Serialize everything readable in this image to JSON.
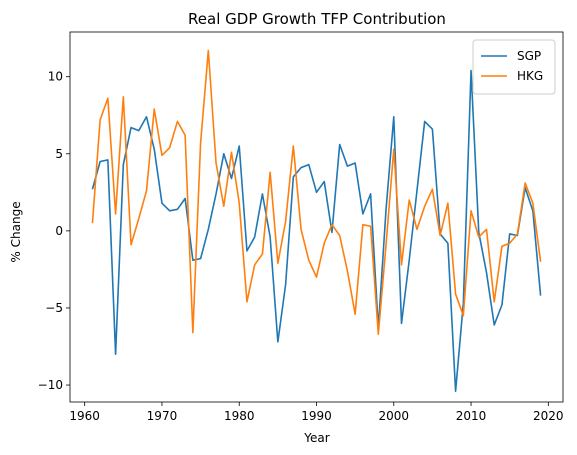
{
  "chart_data": {
    "type": "line",
    "title": "Real GDP Growth TFP Contribution",
    "xlabel": "Year",
    "ylabel": "% Change",
    "xlim": [
      1958.1,
      2021.9
    ],
    "ylim": [
      -11.1,
      12.9
    ],
    "xticks": [
      1960,
      1970,
      1980,
      1990,
      2000,
      2010,
      2020
    ],
    "yticks": [
      -10,
      -5,
      0,
      5,
      10
    ],
    "ytick_labels": [
      "−10",
      "−5",
      "0",
      "5",
      "10"
    ],
    "grid": false,
    "legend_position": "top-right",
    "x": [
      1961,
      1962,
      1963,
      1964,
      1965,
      1966,
      1967,
      1968,
      1969,
      1970,
      1971,
      1972,
      1973,
      1974,
      1975,
      1976,
      1977,
      1978,
      1979,
      1980,
      1981,
      1982,
      1983,
      1984,
      1985,
      1986,
      1987,
      1988,
      1989,
      1990,
      1991,
      1992,
      1993,
      1994,
      1995,
      1996,
      1997,
      1998,
      1999,
      2000,
      2001,
      2002,
      2003,
      2004,
      2005,
      2006,
      2007,
      2008,
      2009,
      2010,
      2011,
      2012,
      2013,
      2014,
      2015,
      2016,
      2017,
      2018,
      2019
    ],
    "series": [
      {
        "name": "SGP",
        "color": "#1f77b4",
        "values": [
          2.7,
          4.5,
          4.6,
          -8.0,
          4.3,
          6.7,
          6.5,
          7.4,
          5.3,
          1.8,
          1.3,
          1.4,
          2.1,
          -1.9,
          -1.8,
          0.1,
          2.4,
          5.0,
          3.4,
          5.5,
          -1.3,
          -0.4,
          2.4,
          -0.4,
          -7.2,
          -3.5,
          3.5,
          4.1,
          4.3,
          2.5,
          3.2,
          -0.1,
          5.6,
          4.2,
          4.4,
          1.1,
          2.4,
          -6.3,
          1.4,
          7.4,
          -6.0,
          -1.9,
          2.6,
          7.1,
          6.6,
          -0.2,
          -0.8,
          -10.4,
          -4.7,
          10.4,
          -0.1,
          -2.7,
          -6.1,
          -4.8,
          -0.2,
          -0.3,
          2.8,
          1.3,
          -4.2
        ]
      },
      {
        "name": "HKG",
        "color": "#ff7f0e",
        "values": [
          0.5,
          7.2,
          8.6,
          1.1,
          8.7,
          -0.9,
          0.8,
          2.6,
          7.9,
          4.9,
          5.4,
          7.1,
          6.2,
          -6.6,
          5.7,
          11.7,
          4.4,
          1.6,
          5.1,
          1.8,
          -4.6,
          -2.2,
          -1.5,
          3.8,
          -2.1,
          0.6,
          5.5,
          0.1,
          -1.9,
          -3.0,
          -0.8,
          0.4,
          -0.3,
          -2.6,
          -5.4,
          0.4,
          0.3,
          -6.7,
          -0.9,
          5.3,
          -2.2,
          2.0,
          0.1,
          1.6,
          2.7,
          -0.3,
          1.8,
          -4.1,
          -5.5,
          1.3,
          -0.4,
          0.1,
          -4.6,
          -1.0,
          -0.8,
          -0.2,
          3.1,
          1.8,
          -2.0
        ]
      }
    ]
  }
}
